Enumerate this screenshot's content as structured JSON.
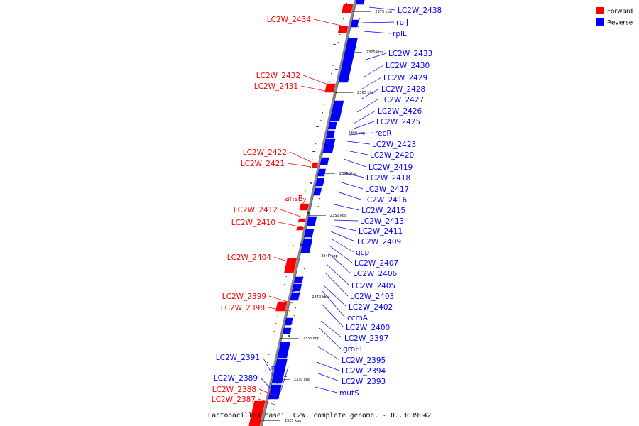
{
  "colors": {
    "forward": "#ff0000",
    "reverse": "#0000ff",
    "backbone": "#888888"
  },
  "legend": {
    "forward": "Forward",
    "reverse": "Reverse"
  },
  "caption": "Lactobacillus casei LC2W, complete genome. - 0..3039042",
  "kbp_ticks": [
    "2375 kbp",
    "2370 kbp",
    "2365 kbp",
    "2360 kbp",
    "2355 kbp",
    "2350 kbp",
    "2345 kbp",
    "2340 kbp",
    "2335 kbp",
    "2330 kbp",
    "2325 kbp"
  ],
  "forward_genes": [
    "LC2W_2434",
    "LC2W_2432",
    "LC2W_2431",
    "LC2W_2422",
    "LC2W_2421",
    "ansB",
    "LC2W_2412",
    "LC2W_2410",
    "LC2W_2404",
    "LC2W_2399",
    "LC2W_2398",
    "LC2W_2388",
    "LC2W_2387"
  ],
  "reverse_genes_left": [
    "LC2W_2391",
    "maf",
    "LC2W_2389"
  ],
  "reverse_genes": [
    "LC2W_2438",
    "rplJ",
    "rplL",
    "LC2W_2433",
    "LC2W_2430",
    "LC2W_2429",
    "LC2W_2428",
    "LC2W_2427",
    "LC2W_2426",
    "LC2W_2425",
    "recR",
    "LC2W_2423",
    "LC2W_2420",
    "LC2W_2419",
    "LC2W_2418",
    "LC2W_2417",
    "LC2W_2416",
    "LC2W_2415",
    "LC2W_2413",
    "LC2W_2411",
    "LC2W_2409",
    "gcp",
    "LC2W_2407",
    "LC2W_2406",
    "LC2W_2405",
    "LC2W_2403",
    "LC2W_2402",
    "ccmA",
    "LC2W_2400",
    "LC2W_2397",
    "groEL",
    "LC2W_2395",
    "LC2W_2394",
    "LC2W_2393",
    "mutS"
  ]
}
